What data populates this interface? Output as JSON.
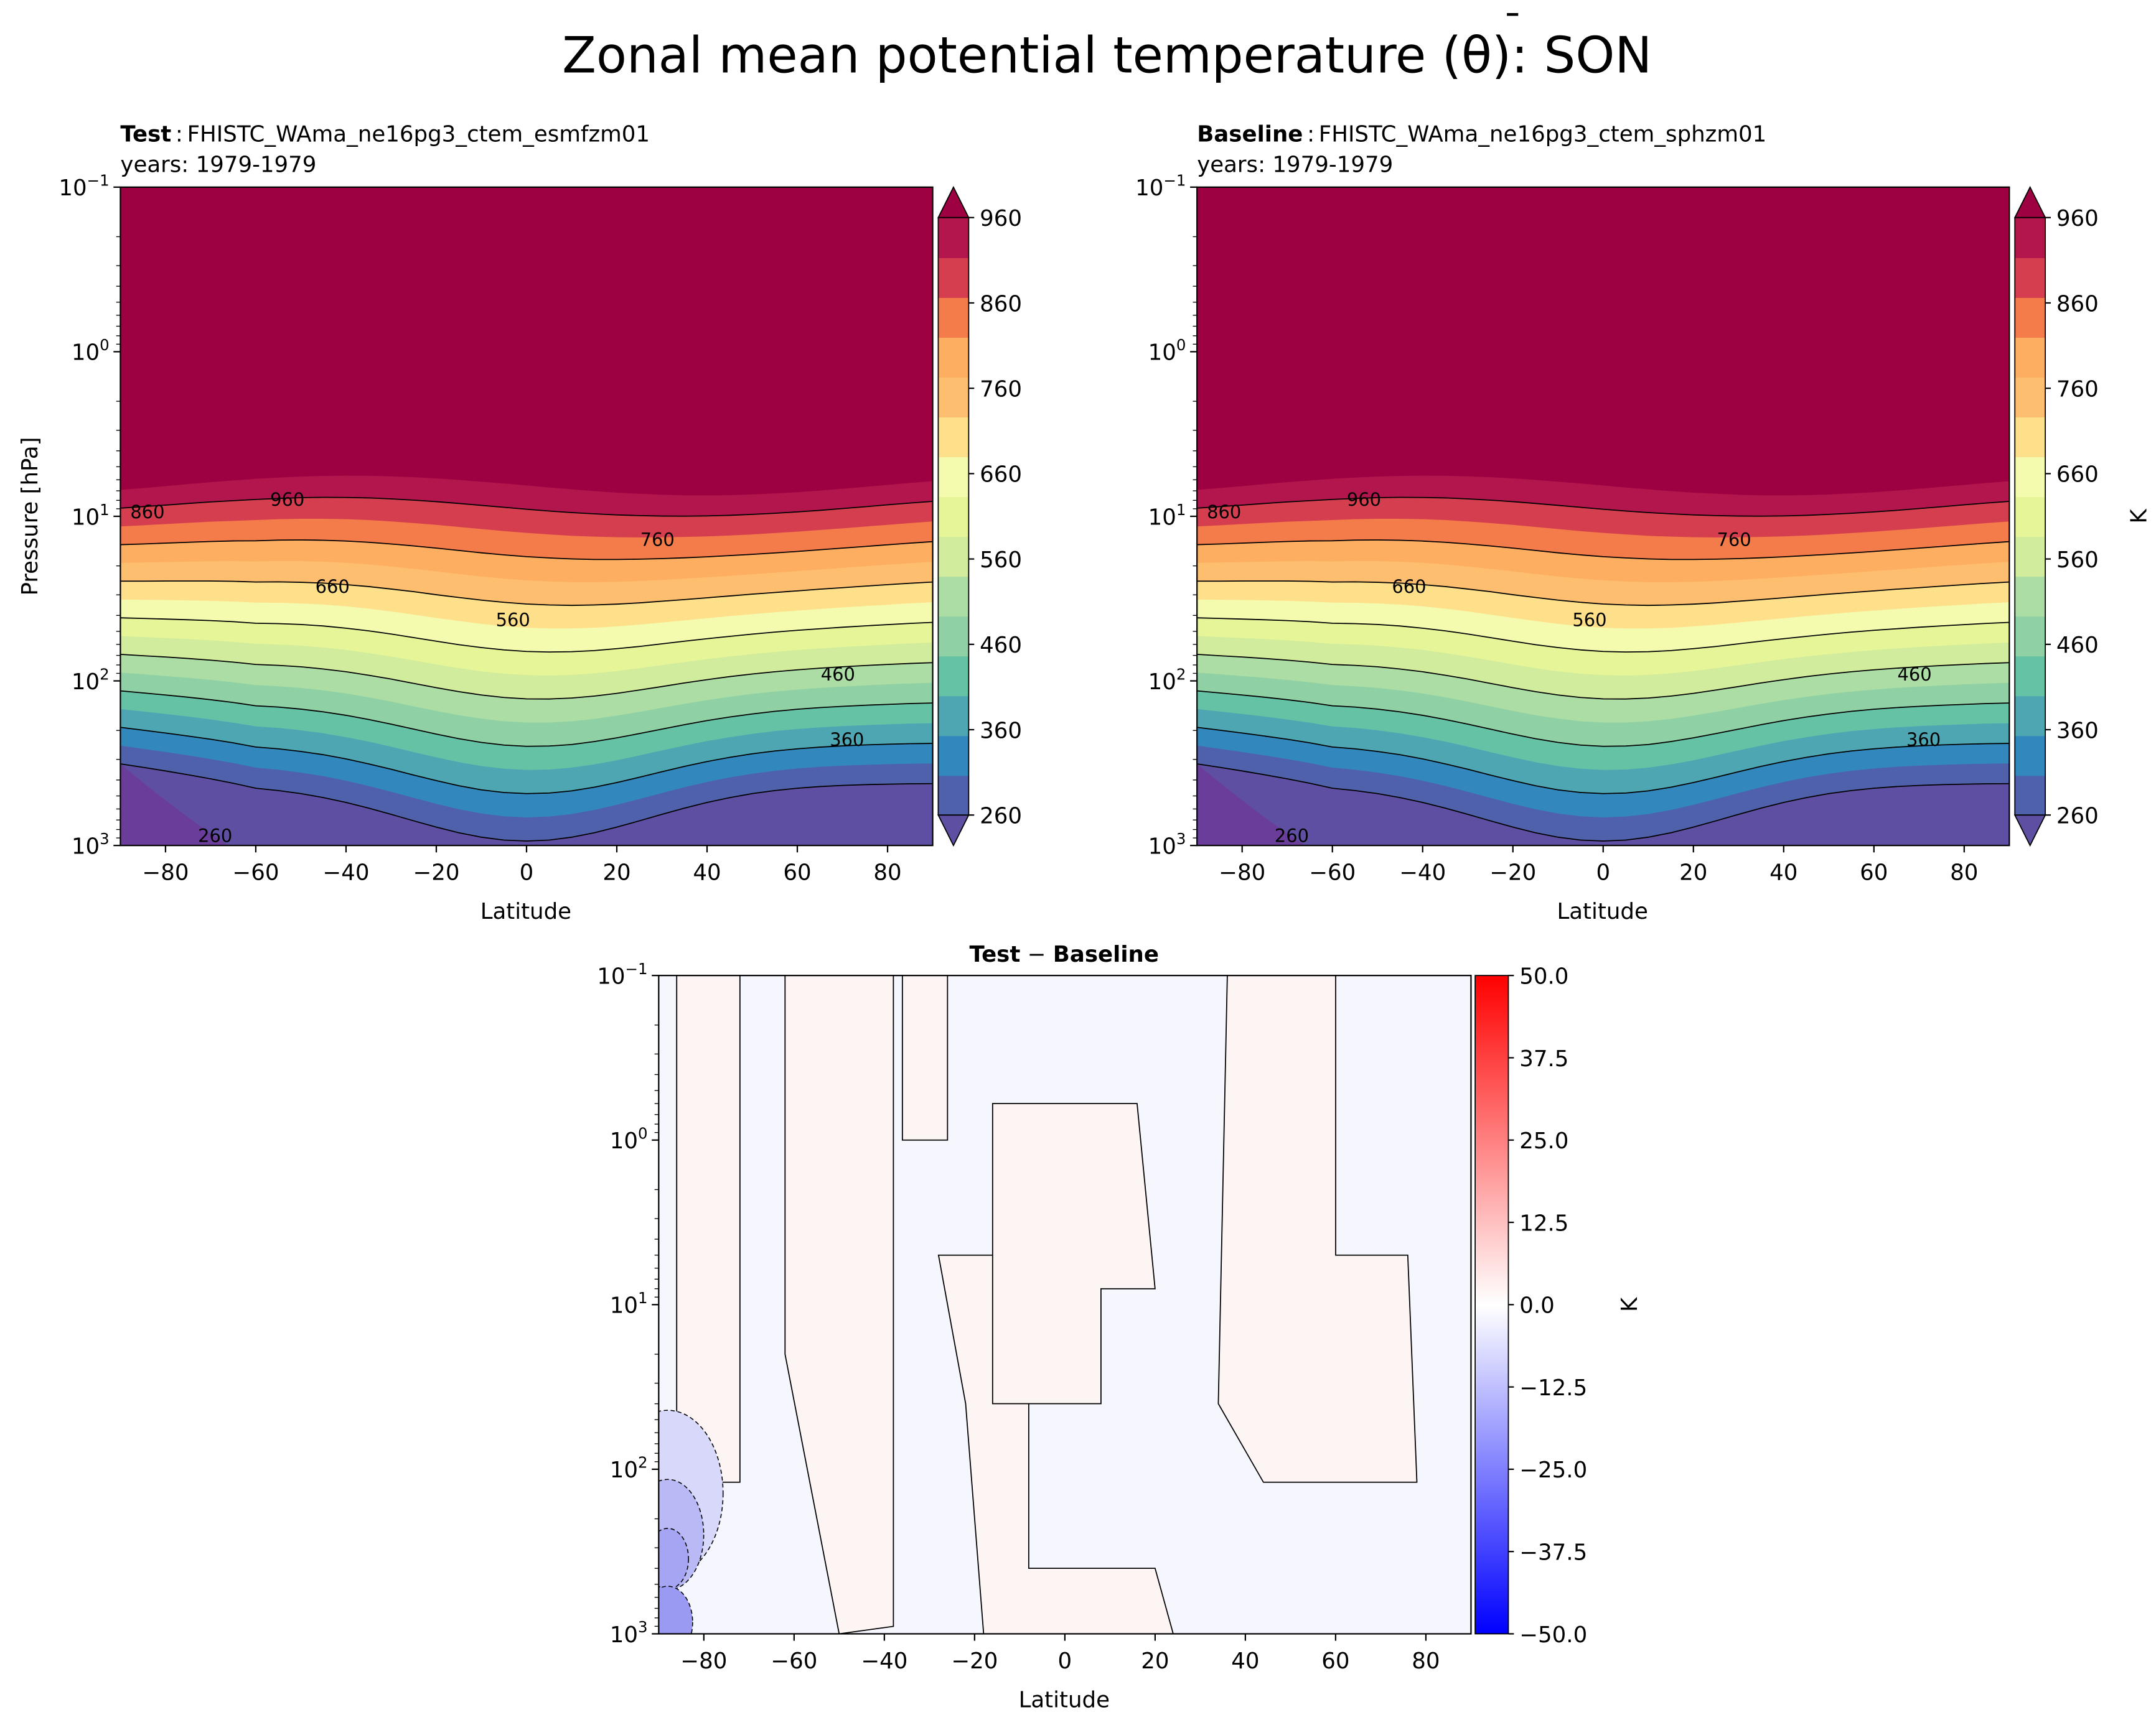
{
  "figure": {
    "title_prefix": "Zonal mean potential temperature (",
    "title_symbol": "θ",
    "title_symbol_bar": "¯",
    "title_suffix": "): SON"
  },
  "chart_data": [
    {
      "type": "contour",
      "panel": "test",
      "label_bold": "Test",
      "label_sep": ":",
      "case_name": "FHISTC_WAma_ne16pg3_ctem_esmfzm01",
      "years": "years: 1979-1979",
      "xlabel": "Latitude",
      "ylabel": "Pressure [hPa]",
      "xlim": [
        -90,
        90
      ],
      "ylim_hpa": [
        1000,
        0.1
      ],
      "yscale": "log",
      "x_ticks": [
        "−80",
        "−60",
        "−40",
        "−20",
        "0",
        "20",
        "40",
        "60",
        "80"
      ],
      "x_tick_values": [
        -80,
        -60,
        -40,
        -20,
        0,
        20,
        40,
        60,
        80
      ],
      "y_ticks": [
        {
          "base": "10",
          "exp": "−1"
        },
        {
          "base": "10",
          "exp": "0"
        },
        {
          "base": "10",
          "exp": "1"
        },
        {
          "base": "10",
          "exp": "2"
        },
        {
          "base": "10",
          "exp": "3"
        }
      ],
      "levels": [
        260,
        310,
        360,
        410,
        460,
        510,
        560,
        610,
        660,
        710,
        760,
        810,
        860,
        910,
        960
      ],
      "contour_labels": [
        {
          "text": "960",
          "lat": -53,
          "p": 8
        },
        {
          "text": "860",
          "lat": -84,
          "p": 9.5
        },
        {
          "text": "760",
          "lat": 29,
          "p": 14
        },
        {
          "text": "660",
          "lat": -43,
          "p": 27
        },
        {
          "text": "560",
          "lat": -3,
          "p": 43
        },
        {
          "text": "460",
          "lat": 69,
          "p": 92
        },
        {
          "text": "360",
          "lat": 71,
          "p": 230
        },
        {
          "text": "260",
          "lat": -69,
          "p": 880
        }
      ],
      "colorbar": {
        "ticks": [
          "260",
          "360",
          "460",
          "560",
          "660",
          "760",
          "860",
          "960"
        ],
        "label": ""
      }
    },
    {
      "type": "contour",
      "panel": "baseline",
      "label_bold": "Baseline",
      "label_sep": ":",
      "case_name": "FHISTC_WAma_ne16pg3_ctem_sphzm01",
      "years": "years: 1979-1979",
      "xlabel": "Latitude",
      "ylabel": "",
      "xlim": [
        -90,
        90
      ],
      "ylim_hpa": [
        1000,
        0.1
      ],
      "yscale": "log",
      "x_ticks": [
        "−80",
        "−60",
        "−40",
        "−20",
        "0",
        "20",
        "40",
        "60",
        "80"
      ],
      "x_tick_values": [
        -80,
        -60,
        -40,
        -20,
        0,
        20,
        40,
        60,
        80
      ],
      "y_ticks": [
        {
          "base": "10",
          "exp": "−1"
        },
        {
          "base": "10",
          "exp": "0"
        },
        {
          "base": "10",
          "exp": "1"
        },
        {
          "base": "10",
          "exp": "2"
        },
        {
          "base": "10",
          "exp": "3"
        }
      ],
      "levels": [
        260,
        310,
        360,
        410,
        460,
        510,
        560,
        610,
        660,
        710,
        760,
        810,
        860,
        910,
        960
      ],
      "contour_labels": [
        {
          "text": "960",
          "lat": -53,
          "p": 8
        },
        {
          "text": "860",
          "lat": -84,
          "p": 9.5
        },
        {
          "text": "760",
          "lat": 29,
          "p": 14
        },
        {
          "text": "660",
          "lat": -43,
          "p": 27
        },
        {
          "text": "560",
          "lat": -3,
          "p": 43
        },
        {
          "text": "460",
          "lat": 69,
          "p": 92
        },
        {
          "text": "360",
          "lat": 71,
          "p": 230
        },
        {
          "text": "260",
          "lat": -69,
          "p": 880
        }
      ],
      "colorbar": {
        "ticks": [
          "260",
          "360",
          "460",
          "560",
          "660",
          "760",
          "860",
          "960"
        ],
        "label": "K"
      }
    },
    {
      "type": "contour",
      "panel": "difference",
      "title_bold_left": "Test",
      "title_op": " − ",
      "title_bold_right": "Baseline",
      "xlabel": "Latitude",
      "xlim": [
        -90,
        90
      ],
      "ylim_hpa": [
        1000,
        0.1
      ],
      "yscale": "log",
      "x_ticks": [
        "−80",
        "−60",
        "−40",
        "−20",
        "0",
        "20",
        "40",
        "60",
        "80"
      ],
      "x_tick_values": [
        -80,
        -60,
        -40,
        -20,
        0,
        20,
        40,
        60,
        80
      ],
      "y_ticks": [
        {
          "base": "10",
          "exp": "−1"
        },
        {
          "base": "10",
          "exp": "0"
        },
        {
          "base": "10",
          "exp": "1"
        },
        {
          "base": "10",
          "exp": "2"
        },
        {
          "base": "10",
          "exp": "3"
        }
      ],
      "range": [
        -50,
        50
      ],
      "colorbar": {
        "ticks": [
          "50.0",
          "37.5",
          "25.0",
          "12.5",
          "0.0",
          "−12.5",
          "−25.0",
          "−37.5",
          "−50.0"
        ],
        "label": "K"
      }
    }
  ],
  "colors": {
    "spectral": [
      "#5e4fa2",
      "#4f61aa",
      "#3288bd",
      "#4ea6b3",
      "#66c2a5",
      "#8fd1a4",
      "#abdda4",
      "#d0ec9c",
      "#e6f598",
      "#f4fbaf",
      "#fee08b",
      "#fdbe6f",
      "#fdae61",
      "#f47b4a",
      "#d53e4f",
      "#b3164c",
      "#9e0142"
    ],
    "diff_neg": "#0000ff",
    "diff_pos": "#ff0000"
  }
}
